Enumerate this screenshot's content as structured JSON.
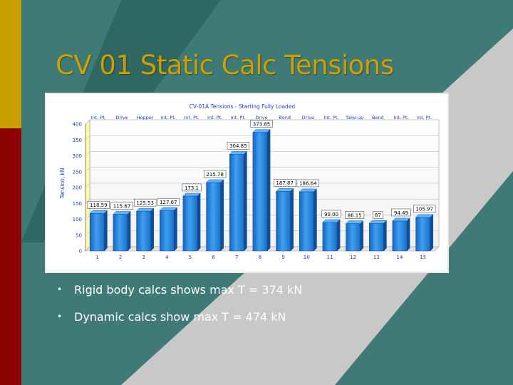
{
  "slide": {
    "title": "CV 01 Static Calc Tensions",
    "bullets": [
      "Rigid body calcs shows max T = 374 kN",
      "Dynamic calcs show max T = 474 kN"
    ],
    "colors": {
      "teal": "#3f7a77",
      "teal_dark": "#2f6763",
      "gray": "#c8c8c8",
      "gold": "#c8a000",
      "maroon": "#8b0000",
      "title": "#cda000"
    }
  },
  "chart_data": {
    "type": "bar",
    "title": "CV-01A Tensions - Starting Fully Loaded",
    "ylabel": "Tension, kN",
    "xlabel": "",
    "ylim": [
      0,
      400
    ],
    "yticks": [
      0,
      50,
      100,
      150,
      200,
      250,
      300,
      350,
      400
    ],
    "grid": true,
    "categories": [
      "1",
      "2",
      "3",
      "4",
      "5",
      "6",
      "7",
      "8",
      "9",
      "10",
      "11",
      "12",
      "13",
      "14",
      "15"
    ],
    "top_labels": [
      "Int. Pt.",
      "Drive",
      "Hopper",
      "Int. Pt.",
      "Int. Pt.",
      "Int. Pt.",
      "Int. Pt.",
      "Drive",
      "Bend",
      "Drive",
      "Int. Pt.",
      "Take-up",
      "Bend",
      "Int. Pt.",
      "Int. Pt."
    ],
    "values": [
      118.59,
      115.67,
      125.53,
      127.67,
      173.1,
      215.78,
      304.85,
      373.85,
      187.87,
      186.64,
      90.0,
      86.15,
      87,
      94.49,
      105.97
    ],
    "value_labels": [
      "118.59",
      "115.67",
      "125.53",
      "127.67",
      "173.1",
      "215.78",
      "304.85",
      "373.85",
      "187.87",
      "186.64",
      "90.00",
      "86.15",
      "87",
      "94.49",
      "105.97"
    ],
    "bar_color": "#1e78d2"
  }
}
